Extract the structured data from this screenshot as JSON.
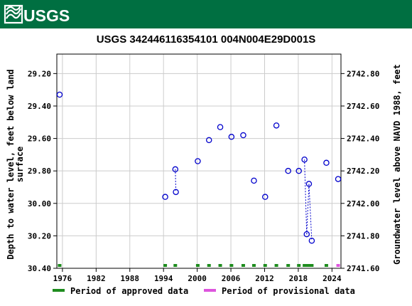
{
  "header": {
    "logo_text": "USGS",
    "bar_color": "#006f41"
  },
  "chart_data": {
    "type": "scatter",
    "title": "USGS 342446116354101 004N004E29D001S",
    "ylabel_left": "Depth to water level, feet below land surface",
    "ylabel_right": "Groundwater level above NAVD 1988, feet",
    "x_ticks": [
      "1976",
      "1982",
      "1988",
      "1994",
      "2000",
      "2006",
      "2012",
      "2018",
      "2024"
    ],
    "y_left_ticks": [
      "29.20",
      "29.40",
      "29.60",
      "29.80",
      "30.00",
      "30.20",
      "30.40"
    ],
    "y_right_ticks": [
      "2742.80",
      "2742.60",
      "2742.40",
      "2742.20",
      "2742.00",
      "2741.80",
      "2741.60"
    ],
    "xlim": [
      1975.0,
      2025.6
    ],
    "ylim_left": [
      29.08,
      30.4
    ],
    "ylim_right": [
      2741.6,
      2742.92
    ],
    "y_inverted": true,
    "grid": true,
    "marker_color": "#0000cc",
    "points": [
      {
        "x": 1975.5,
        "y": 29.33
      },
      {
        "x": 1994.3,
        "y": 29.96
      },
      {
        "x": 1996.1,
        "y": 29.79
      },
      {
        "x": 1996.2,
        "y": 29.93
      },
      {
        "x": 2000.1,
        "y": 29.74
      },
      {
        "x": 2002.1,
        "y": 29.61
      },
      {
        "x": 2004.1,
        "y": 29.53
      },
      {
        "x": 2006.1,
        "y": 29.59
      },
      {
        "x": 2008.2,
        "y": 29.58
      },
      {
        "x": 2010.1,
        "y": 29.86
      },
      {
        "x": 2012.1,
        "y": 29.96
      },
      {
        "x": 2014.1,
        "y": 29.52
      },
      {
        "x": 2016.2,
        "y": 29.8
      },
      {
        "x": 2018.1,
        "y": 29.8
      },
      {
        "x": 2019.1,
        "y": 29.73
      },
      {
        "x": 2019.5,
        "y": 30.19
      },
      {
        "x": 2019.9,
        "y": 29.88
      },
      {
        "x": 2020.4,
        "y": 30.23
      },
      {
        "x": 2023.0,
        "y": 29.75
      },
      {
        "x": 2025.1,
        "y": 29.85
      }
    ],
    "dotted_links": [
      [
        2,
        3
      ],
      [
        14,
        15
      ],
      [
        15,
        16
      ],
      [
        16,
        17
      ]
    ],
    "approved_marks": [
      1975.5,
      1994.3,
      1996.1,
      2000.1,
      2002.1,
      2004.1,
      2006.1,
      2008.2,
      2010.1,
      2012.1,
      2014.1,
      2016.2,
      2018.1,
      2019.1,
      2019.5,
      2019.9,
      2020.4,
      2023.0
    ],
    "provisional_marks": [
      2025.1
    ],
    "legend": [
      {
        "label": "Period of approved data",
        "color": "#1e8c1e"
      },
      {
        "label": "Period of provisional data",
        "color": "#dd55dd"
      }
    ]
  }
}
